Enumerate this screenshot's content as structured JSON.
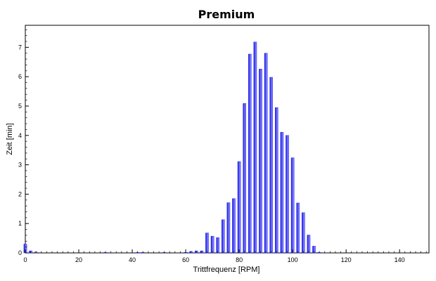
{
  "chart_data": {
    "type": "bar",
    "title": "Premium",
    "xlabel": "Trittfrequenz [RPM]",
    "ylabel": "Zeit [min]",
    "xlim": [
      0,
      151
    ],
    "ylim": [
      0,
      7.75
    ],
    "xticks": [
      0,
      20,
      40,
      60,
      80,
      100,
      120,
      140
    ],
    "yticks": [
      0,
      1,
      2,
      3,
      4,
      5,
      6,
      7
    ],
    "grid": false,
    "legend": "none",
    "bar_color": "#1414e6",
    "bar_shade_color": "#8a8aff",
    "x": [
      0,
      2,
      4,
      30,
      42,
      44,
      52,
      60,
      62,
      64,
      66,
      68,
      70,
      72,
      74,
      76,
      78,
      80,
      82,
      84,
      86,
      88,
      90,
      92,
      94,
      96,
      98,
      100,
      102,
      104,
      106,
      108,
      110
    ],
    "values": [
      0.3,
      0.07,
      0.03,
      0.02,
      0.02,
      0.02,
      0.02,
      0.02,
      0.05,
      0.07,
      0.07,
      0.68,
      0.57,
      0.52,
      1.13,
      1.71,
      1.85,
      3.11,
      5.09,
      6.77,
      7.18,
      6.26,
      6.8,
      5.98,
      4.95,
      4.11,
      4.0,
      3.24,
      1.7,
      1.37,
      0.61,
      0.23,
      0.02
    ]
  }
}
